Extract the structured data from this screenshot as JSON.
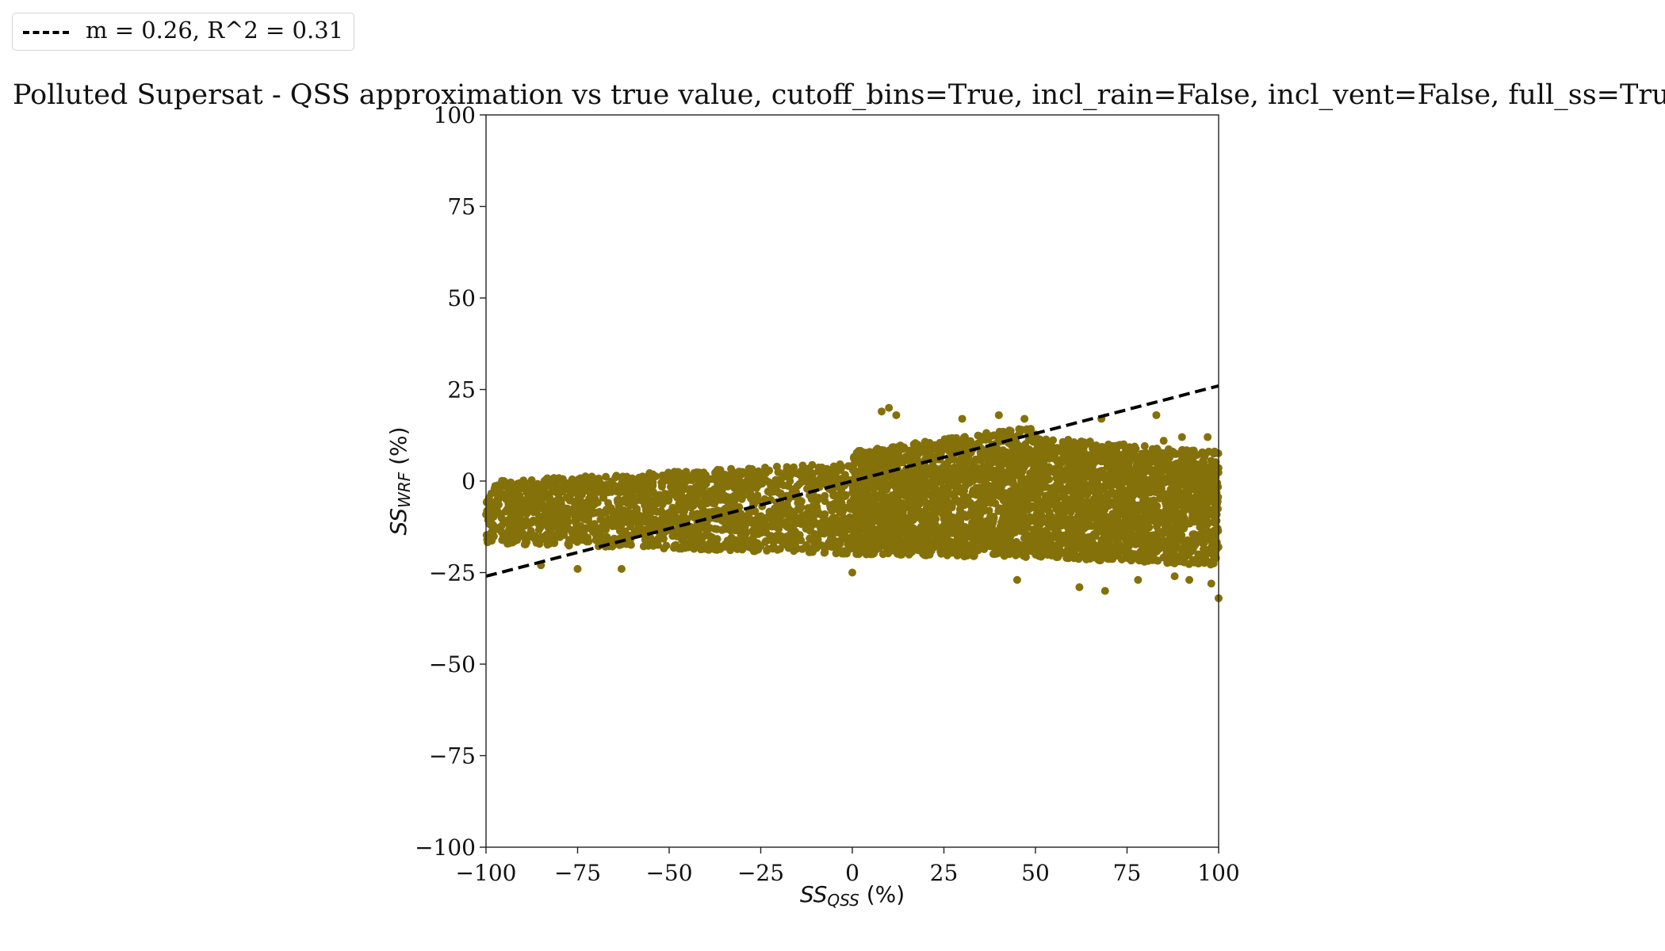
{
  "chart_data": {
    "type": "scatter",
    "title": "Polluted Supersat - QSS approximation vs true value, cutoff_bins=True, incl_rain=False, incl_vent=False, full_ss=Tru",
    "xlabel_main": "SS",
    "xlabel_sub": "QSS",
    "xlabel_unit": " (%)",
    "ylabel_main": "SS",
    "ylabel_sub": "WRF",
    "ylabel_unit": " (%)",
    "xlim": [
      -100,
      100
    ],
    "ylim": [
      -100,
      100
    ],
    "xticks": [
      -100,
      -75,
      -50,
      -25,
      0,
      25,
      50,
      75,
      100
    ],
    "yticks": [
      -100,
      -75,
      -50,
      -25,
      0,
      25,
      50,
      75,
      100
    ],
    "xtick_labels": [
      "−100",
      "−75",
      "−50",
      "−25",
      "0",
      "25",
      "50",
      "75",
      "100"
    ],
    "ytick_labels": [
      "−100",
      "−75",
      "−50",
      "−25",
      "0",
      "25",
      "50",
      "75",
      "100"
    ],
    "grid": false,
    "legend_position": "top-left",
    "point_color": "#85710a",
    "fit_line": {
      "label": "m = 0.26, R^2 = 0.31",
      "slope": 0.26,
      "r_squared": 0.31,
      "color": "#000000",
      "style": "dashed",
      "x": [
        -100,
        100
      ],
      "y": [
        -26,
        26
      ]
    },
    "scatter_bands": [
      {
        "x": [
          -100,
          0
        ],
        "y_low_start": -17,
        "y_low_end": -20,
        "y_high_start": 0,
        "y_high_end": 5
      },
      {
        "x": [
          0,
          50
        ],
        "y_low_start": -20,
        "y_low_end": -21,
        "y_high_start": 8,
        "y_high_end": 15
      },
      {
        "x": [
          50,
          100
        ],
        "y_low_start": -21,
        "y_low_end": -23,
        "y_high_start": 12,
        "y_high_end": 8
      }
    ],
    "outlier_points": [
      {
        "x": 10,
        "y": 20
      },
      {
        "x": 8,
        "y": 19
      },
      {
        "x": 12,
        "y": 18
      },
      {
        "x": 40,
        "y": 18
      },
      {
        "x": 47,
        "y": 17
      },
      {
        "x": 68,
        "y": 17
      },
      {
        "x": 83,
        "y": 18
      },
      {
        "x": 30,
        "y": 17
      },
      {
        "x": 62,
        "y": -29
      },
      {
        "x": 69,
        "y": -30
      },
      {
        "x": 100,
        "y": -32
      },
      {
        "x": 98,
        "y": -28
      },
      {
        "x": 92,
        "y": -27
      },
      {
        "x": 45,
        "y": -27
      },
      {
        "x": -85,
        "y": -23
      },
      {
        "x": -63,
        "y": -24
      },
      {
        "x": -75,
        "y": -24
      },
      {
        "x": 0,
        "y": -25
      },
      {
        "x": 78,
        "y": -27
      },
      {
        "x": 88,
        "y": -26
      },
      {
        "x": 95,
        "y": -22
      },
      {
        "x": 97,
        "y": 12
      },
      {
        "x": 90,
        "y": 12
      },
      {
        "x": 85,
        "y": 11
      }
    ]
  }
}
